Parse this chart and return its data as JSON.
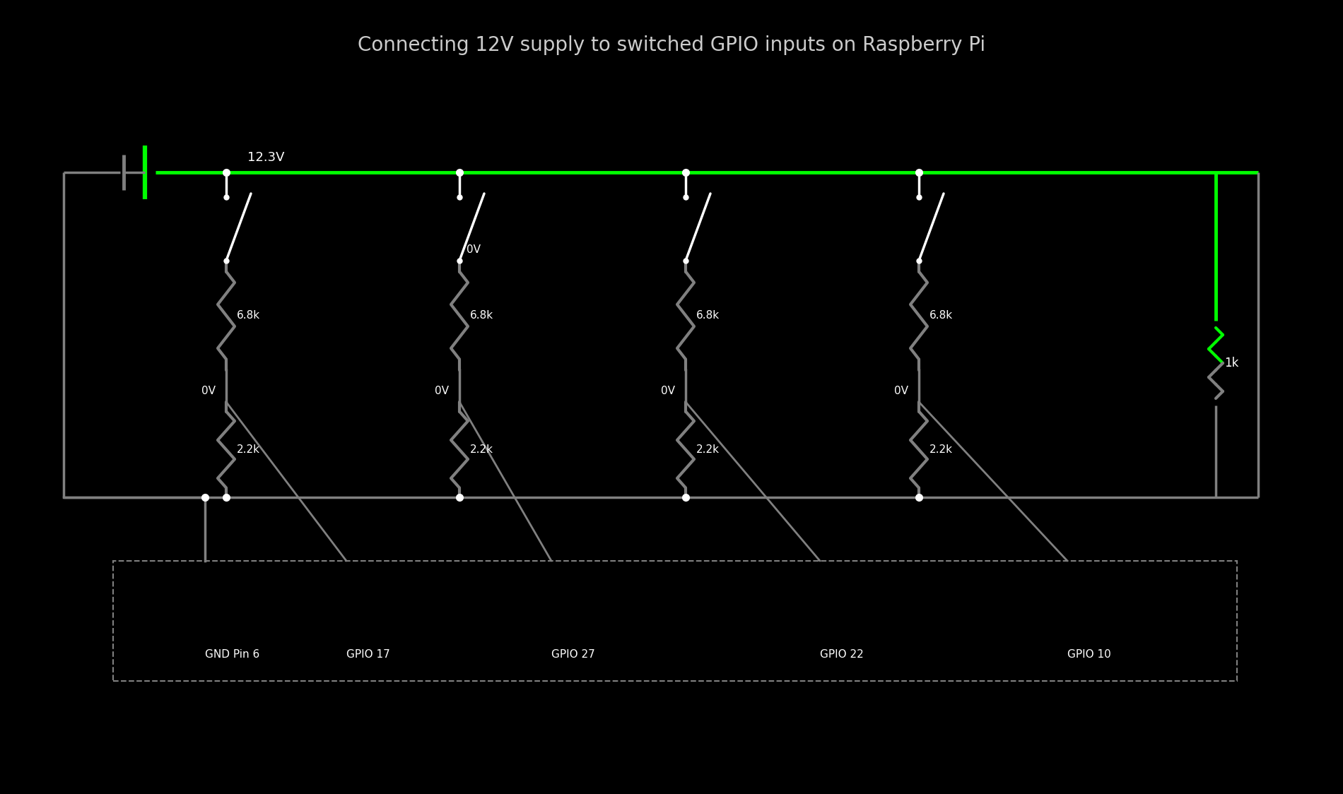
{
  "title": "Connecting 12V supply to switched GPIO inputs on Raspberry Pi",
  "background_color": "#000000",
  "title_color": "#cccccc",
  "wire_color": "#808080",
  "green_color": "#00ff00",
  "white_color": "#ffffff",
  "dot_color": "#ffffff",
  "text_color": "#ffffff",
  "voltage_12v": "12.3V",
  "voltage_0v": "0V",
  "label_1k": "1k",
  "label_6_8k": "6.8k",
  "label_2_2k": "2.2k",
  "gpio_labels": [
    "GND Pin 6",
    "GPIO 17",
    "GPIO 27",
    "GPIO 22",
    "GPIO 10"
  ],
  "resistor_color_68k": "#808080",
  "resistor_color_22k": "#808080",
  "resistor_color_1k_top": "#00ff00",
  "resistor_color_1k_bot": "#808080"
}
